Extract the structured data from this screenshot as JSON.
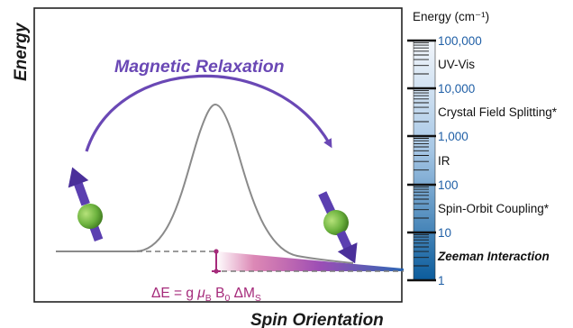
{
  "diagram": {
    "y_axis_label": "Energy",
    "x_axis_label": "Spin Orientation",
    "process_label": "Magnetic Relaxation",
    "equation": {
      "lhs": "ΔE = g ",
      "mu": "μ",
      "mu_sub": "B",
      "b": " B",
      "b_sub": "0",
      "dm": " ΔM",
      "dm_sub": "S"
    },
    "colors": {
      "relaxation_arrow": "#6a48b5",
      "spin_arrow": "#5b3fb0",
      "atom": "#6db33f",
      "equation": "#a52a7a",
      "barrier_curve": "#8a8a8a"
    }
  },
  "energy_scale": {
    "title": "Energy (cm⁻¹)",
    "ticks": [
      "100,000",
      "10,000",
      "1,000",
      "100",
      "10",
      "1"
    ],
    "regions": [
      {
        "label": "UV-Vis",
        "emphasis": false
      },
      {
        "label": "Crystal Field Splitting*",
        "emphasis": false
      },
      {
        "label": "IR",
        "emphasis": false
      },
      {
        "label": "Spin-Orbit Coupling*",
        "emphasis": false
      },
      {
        "label": "Zeeman Interaction",
        "emphasis": true
      }
    ],
    "colors": {
      "top": "#f2f6fb",
      "bottom": "#0b5c9c",
      "tick_text": "#1f5fa6"
    }
  }
}
